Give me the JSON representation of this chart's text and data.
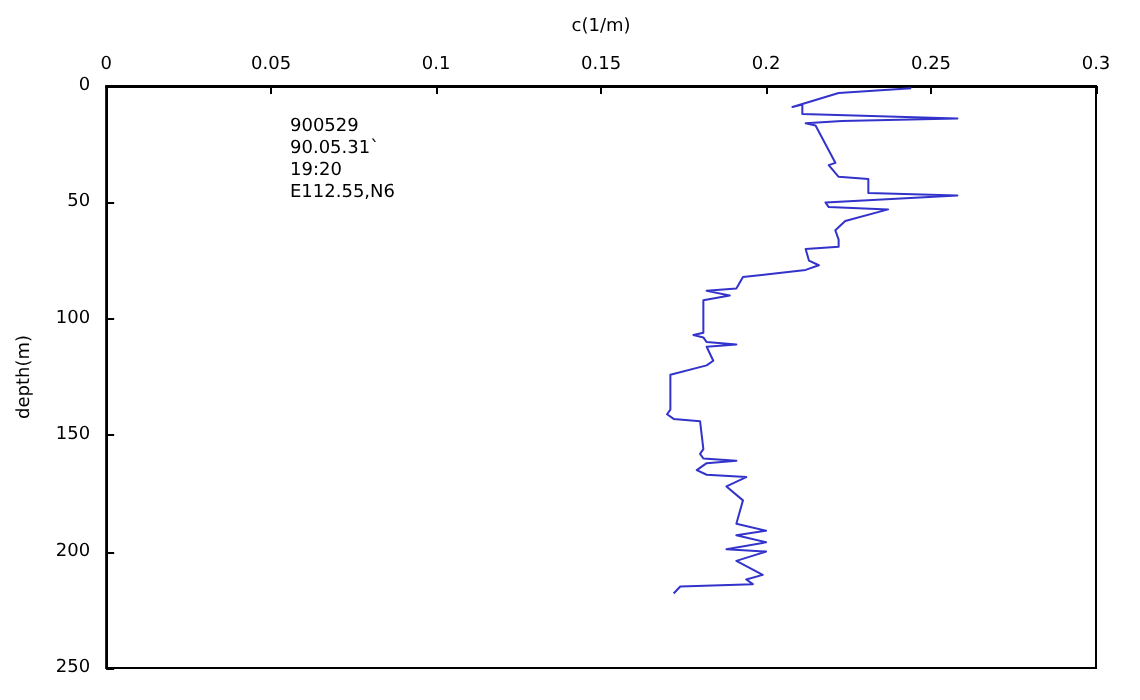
{
  "chart_data": {
    "type": "line",
    "xlabel": "c(1/m)",
    "ylabel": "depth(m)",
    "annotations": [
      "900529",
      "90.05.31`",
      "19:20",
      "E112.55,N6"
    ],
    "xlim": [
      0,
      0.3
    ],
    "xticks": [
      0,
      0.05,
      0.1,
      0.15,
      0.2,
      0.25,
      0.3
    ],
    "ylim": [
      250,
      0
    ],
    "yticks": [
      0,
      50,
      100,
      150,
      200,
      250
    ],
    "grid": false,
    "marker": "none",
    "line_style": "solid",
    "series": [
      {
        "color": "#3333cc",
        "x": [
          0.244,
          0.222,
          0.208,
          0.211,
          0.211,
          0.258,
          0.223,
          0.212,
          0.215,
          0.221,
          0.219,
          0.222,
          0.231,
          0.231,
          0.258,
          0.218,
          0.219,
          0.237,
          0.224,
          0.221,
          0.222,
          0.222,
          0.212,
          0.213,
          0.216,
          0.212,
          0.2,
          0.193,
          0.191,
          0.182,
          0.189,
          0.181,
          0.181,
          0.178,
          0.181,
          0.182,
          0.191,
          0.182,
          0.184,
          0.182,
          0.171,
          0.171,
          0.17,
          0.172,
          0.18,
          0.181,
          0.18,
          0.181,
          0.191,
          0.182,
          0.179,
          0.182,
          0.194,
          0.188,
          0.193,
          0.191,
          0.2,
          0.191,
          0.2,
          0.188,
          0.2,
          0.191,
          0.199,
          0.194,
          0.196,
          0.174,
          0.172
        ],
        "values": [
          1,
          3,
          9,
          8,
          12,
          14,
          15,
          16,
          17,
          33,
          34,
          39,
          40,
          46,
          47,
          50,
          52,
          53,
          58,
          62,
          66,
          69,
          70,
          75,
          77,
          79,
          81,
          82,
          87,
          88,
          90,
          92,
          106,
          107,
          108,
          110,
          111,
          112,
          118,
          120,
          124,
          139,
          141,
          143,
          144,
          156,
          158,
          160,
          161,
          162,
          165,
          167,
          168,
          172,
          178,
          188,
          191,
          193,
          196,
          199,
          200,
          204,
          210,
          212,
          214,
          215,
          218
        ]
      }
    ]
  }
}
